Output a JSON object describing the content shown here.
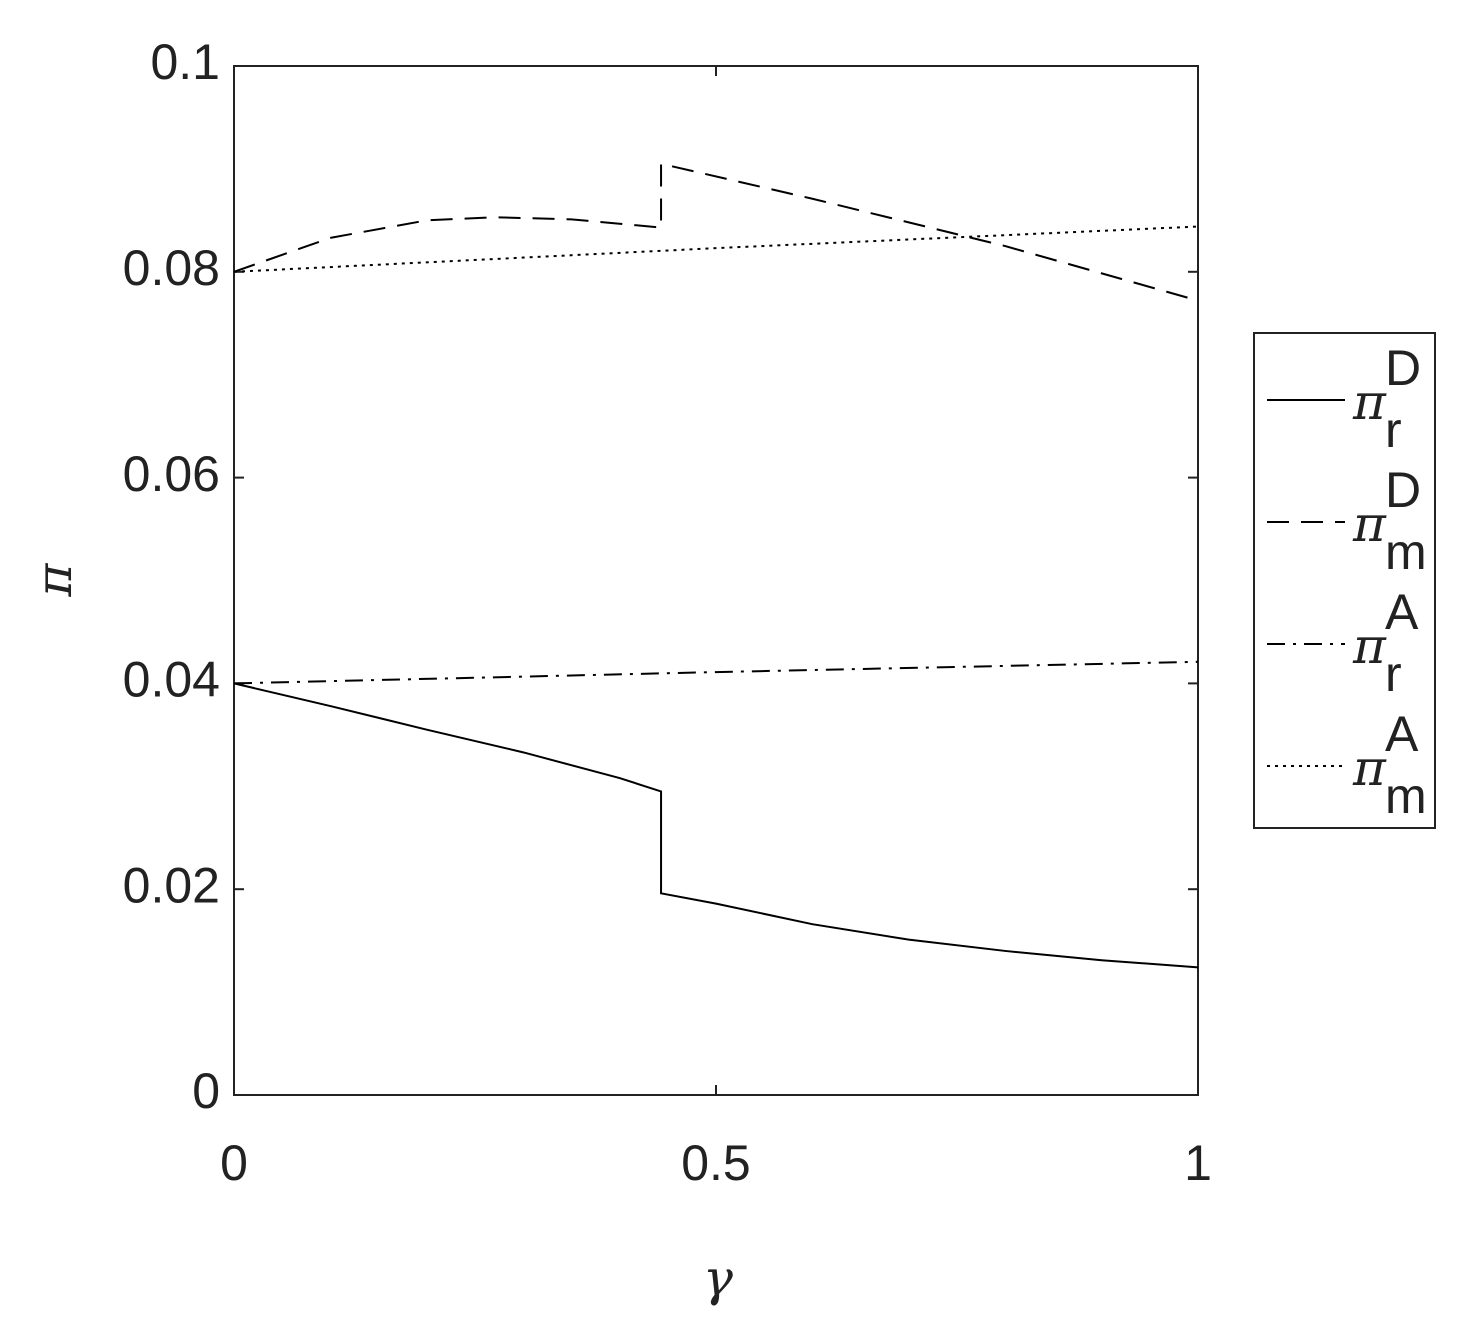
{
  "chart_data": {
    "type": "line",
    "xlabel": "γ",
    "ylabel": "π",
    "xlim": [
      0,
      1
    ],
    "xticks": [
      0,
      0.5,
      1
    ],
    "ylim": [
      0,
      0.1
    ],
    "yticks": [
      0,
      0.02,
      0.04,
      0.06,
      0.08,
      0.1
    ],
    "grid": false,
    "legend": "right",
    "series": [
      {
        "name": "π",
        "superscript": "D",
        "subscript": "r",
        "color": "#000000",
        "dash": "solid",
        "x": [
          0,
          0.1,
          0.2,
          0.3,
          0.4,
          0.443,
          0.443,
          0.5,
          0.6,
          0.7,
          0.8,
          0.9,
          1
        ],
        "values": [
          0.04,
          0.0378,
          0.0355,
          0.0333,
          0.0308,
          0.0295,
          0.0196,
          0.0186,
          0.0166,
          0.0151,
          0.014,
          0.0131,
          0.0124
        ]
      },
      {
        "name": "π",
        "superscript": "D",
        "subscript": "m",
        "color": "#000000",
        "dash": "dashed",
        "x": [
          0,
          0.1,
          0.2,
          0.27,
          0.35,
          0.443,
          0.443,
          0.6,
          0.8,
          1
        ],
        "values": [
          0.08,
          0.0833,
          0.085,
          0.0853,
          0.0851,
          0.0843,
          0.0905,
          0.0871,
          0.0825,
          0.0772
        ]
      },
      {
        "name": "π",
        "superscript": "A",
        "subscript": "r",
        "color": "#000000",
        "dash": "dashdot",
        "x": [
          0,
          0.5,
          1
        ],
        "values": [
          0.04,
          0.0411,
          0.0421
        ]
      },
      {
        "name": "π",
        "superscript": "A",
        "subscript": "m",
        "color": "#000000",
        "dash": "dotted",
        "x": [
          0,
          0.5,
          1
        ],
        "values": [
          0.08,
          0.0823,
          0.0844
        ]
      }
    ]
  }
}
